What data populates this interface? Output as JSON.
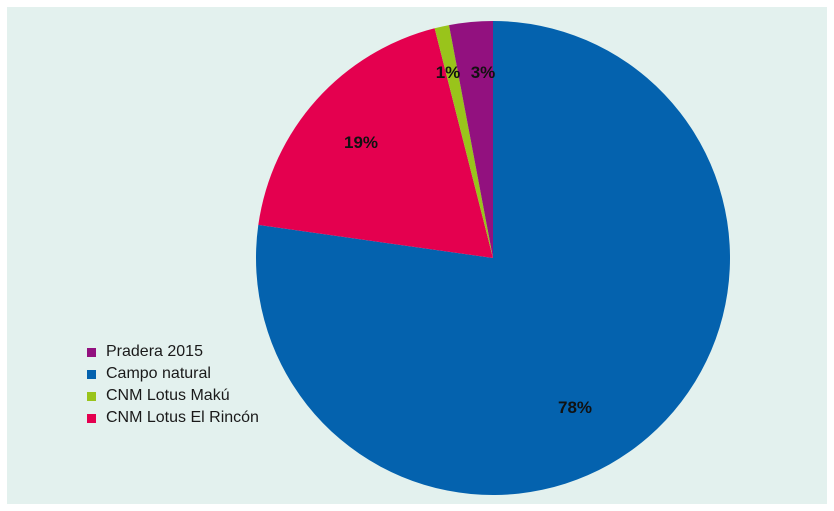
{
  "chart_data": {
    "type": "pie",
    "title": "",
    "legend_position": "left",
    "slices": [
      {
        "label": "Pradera 2015",
        "value": 3,
        "value_label": "3%",
        "color": "#92117f"
      },
      {
        "label": "Campo natural",
        "value": 78,
        "value_label": "78%",
        "color": "#0462ae"
      },
      {
        "label": "CNM Lotus Makú",
        "value": 1,
        "value_label": "1%",
        "color": "#99c41b"
      },
      {
        "label": "CNM Lotus El Rincón",
        "value": 19,
        "value_label": "19%",
        "color": "#e4004f"
      }
    ],
    "legend_order": [
      "Pradera 2015",
      "Campo natural",
      "CNM Lotus Makú",
      "CNM Lotus El Rincón"
    ]
  },
  "background_color": "#e3f1ee"
}
